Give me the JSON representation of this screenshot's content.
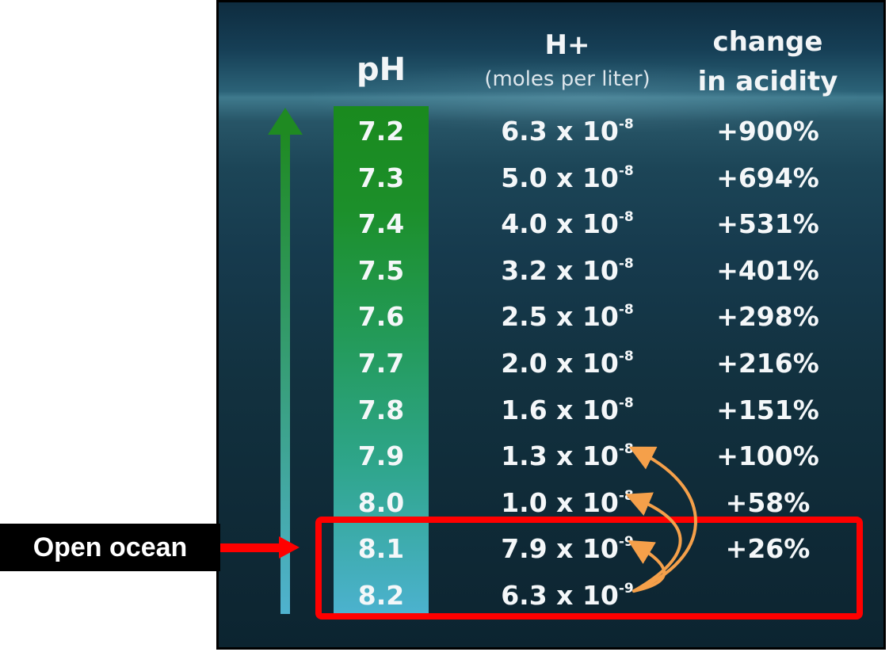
{
  "headers": {
    "ph": "pH",
    "h_plus": "H+",
    "h_plus_unit": "(moles per liter)",
    "change_line1": "change",
    "change_line2": "in acidity"
  },
  "rows": [
    {
      "ph": "7.2",
      "h_mant": "6.3 x 10",
      "h_exp": "-8",
      "change": "+900%"
    },
    {
      "ph": "7.3",
      "h_mant": "5.0 x 10",
      "h_exp": "-8",
      "change": "+694%"
    },
    {
      "ph": "7.4",
      "h_mant": "4.0 x 10",
      "h_exp": "-8",
      "change": "+531%"
    },
    {
      "ph": "7.5",
      "h_mant": "3.2 x 10",
      "h_exp": "-8",
      "change": "+401%"
    },
    {
      "ph": "7.6",
      "h_mant": "2.5 x 10",
      "h_exp": "-8",
      "change": "+298%"
    },
    {
      "ph": "7.7",
      "h_mant": "2.0 x 10",
      "h_exp": "-8",
      "change": "+216%"
    },
    {
      "ph": "7.8",
      "h_mant": "1.6 x 10",
      "h_exp": "-8",
      "change": "+151%"
    },
    {
      "ph": "7.9",
      "h_mant": "1.3 x 10",
      "h_exp": "-8",
      "change": "+100%"
    },
    {
      "ph": "8.0",
      "h_mant": "1.0 x 10",
      "h_exp": "-8",
      "change": "+58%"
    },
    {
      "ph": "8.1",
      "h_mant": "7.9 x 10",
      "h_exp": "-9",
      "change": "+26%"
    },
    {
      "ph": "8.2",
      "h_mant": "6.3 x 10",
      "h_exp": "-9",
      "change": ""
    }
  ],
  "callout": {
    "label": "Open ocean"
  },
  "colors": {
    "highlight_box": "#ff0000",
    "callout_arrow": "#ff0000",
    "curve_arrows": "#f5a04a",
    "acidity_arrow_top": "#1f8a22",
    "acidity_arrow_bottom": "#4fb2cf",
    "ph_column_top": "#1a8a1e",
    "ph_column_bottom": "#4cb2cf"
  },
  "icons": {
    "acidity_arrow": "up-arrow-icon",
    "callout_arrow": "right-arrow-icon",
    "curve_arrows": "curved-arrow-icon"
  }
}
